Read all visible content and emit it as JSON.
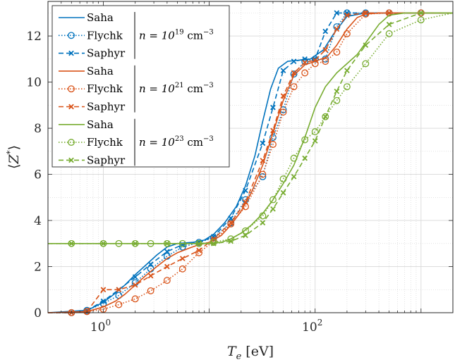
{
  "chart_data": {
    "type": "line",
    "xlabel_var": "T",
    "xlabel_sub": "e",
    "xlabel_unit": "[eV]",
    "ylabel_var": "⟨Z",
    "ylabel_sup": "*",
    "ylabel_close": "⟩",
    "xscale": "log",
    "xlim": [
      0.3,
      2000
    ],
    "ylim": [
      0,
      13.5
    ],
    "x_ticks": [
      {
        "value": 1,
        "base": "10",
        "exp": "0"
      },
      {
        "value": 100,
        "base": "10",
        "exp": "2"
      }
    ],
    "y_ticks": [
      0,
      2,
      4,
      6,
      8,
      10,
      12
    ],
    "grid": true,
    "legend_position": "top-left",
    "colors": {
      "n19": "#0072BD",
      "n21": "#D95319",
      "n23": "#77AC30"
    },
    "groups": [
      {
        "density_prefix": "n = 10",
        "density_exp": "19",
        "density_unit": "cm",
        "density_unit_exp": "−3",
        "color": "#0072BD",
        "series": [
          {
            "name": "Saha",
            "style": "solid",
            "marker": "none",
            "x": [
              0.3,
              0.7,
              1.0,
              1.3,
              1.6,
              2.0,
              2.5,
              3.2,
              4.0,
              5.0,
              7.0,
              9.0,
              11,
              14,
              18,
              22,
              27,
              32,
              38,
              45,
              55,
              70,
              90,
              120,
              150,
              200,
              300,
              500,
              1000,
              2000
            ],
            "y": [
              0,
              0.1,
              0.45,
              0.85,
              1.2,
              1.65,
              2.05,
              2.5,
              2.85,
              3.0,
              3.05,
              3.15,
              3.4,
              3.9,
              4.6,
              5.5,
              6.8,
              8.3,
              9.7,
              10.6,
              10.9,
              10.95,
              11.0,
              11.4,
              12.1,
              12.85,
              13.0,
              13.0,
              13.0,
              13.0
            ]
          },
          {
            "name": "Flychk",
            "style": "dotted",
            "marker": "circle",
            "x": [
              0.3,
              0.5,
              0.7,
              1.0,
              1.4,
              2.0,
              2.8,
              4.0,
              5.6,
              8.0,
              11,
              16,
              22,
              32,
              40,
              50,
              63,
              80,
              100,
              125,
              160,
              200,
              300,
              500,
              1000,
              2000
            ],
            "y": [
              0,
              0.0,
              0.1,
              0.4,
              0.75,
              1.3,
              1.9,
              2.45,
              2.85,
              3.05,
              3.25,
              3.9,
              4.9,
              5.9,
              7.6,
              8.8,
              10.35,
              10.9,
              11.0,
              11.0,
              12.4,
              13.0,
              13.0,
              13.0,
              13.0,
              13.0
            ]
          },
          {
            "name": "Saphyr",
            "style": "dashed",
            "marker": "x",
            "x": [
              0.3,
              0.5,
              0.7,
              1.0,
              1.4,
              2.0,
              2.8,
              4.0,
              5.6,
              8.0,
              11,
              16,
              22,
              32,
              40,
              50,
              63,
              80,
              100,
              125,
              160,
              200,
              300,
              500,
              1000,
              2000
            ],
            "y": [
              0,
              0.0,
              0.1,
              0.5,
              1.0,
              1.55,
              2.1,
              2.65,
              2.95,
              3.05,
              3.3,
              4.1,
              5.3,
              7.35,
              8.9,
              10.5,
              10.9,
              11.0,
              11.0,
              12.2,
              13.0,
              13.0,
              13.0,
              13.0,
              13.0,
              13.0
            ]
          }
        ]
      },
      {
        "density_prefix": "n = 10",
        "density_exp": "21",
        "density_unit": "cm",
        "density_unit_exp": "−3",
        "color": "#D95319",
        "series": [
          {
            "name": "Saha",
            "style": "solid",
            "marker": "none",
            "x": [
              0.3,
              0.7,
              1.0,
              1.3,
              1.6,
              2.0,
              2.5,
              3.2,
              4.0,
              5.0,
              6.5,
              8.0,
              10,
              13,
              16,
              20,
              25,
              32,
              40,
              50,
              63,
              80,
              100,
              130,
              160,
              200,
              250,
              300,
              400,
              600,
              1000,
              2000
            ],
            "y": [
              0,
              0.05,
              0.25,
              0.5,
              0.8,
              1.2,
              1.6,
              2.0,
              2.35,
              2.6,
              2.8,
              2.95,
              3.05,
              3.35,
              3.8,
              4.4,
              5.2,
              6.4,
              7.8,
              9.2,
              10.3,
              10.75,
              10.9,
              11.1,
              11.6,
              12.3,
              12.8,
              12.95,
              13.0,
              13.0,
              13.0,
              13.0
            ]
          },
          {
            "name": "Flychk",
            "style": "dotted",
            "marker": "circle",
            "x": [
              0.3,
              0.5,
              0.7,
              1.0,
              1.4,
              2.0,
              2.8,
              4.0,
              5.6,
              8.0,
              11,
              16,
              22,
              32,
              40,
              50,
              63,
              80,
              100,
              125,
              160,
              200,
              300,
              500,
              1000,
              2000
            ],
            "y": [
              0,
              0.0,
              0.05,
              0.15,
              0.35,
              0.6,
              0.95,
              1.4,
              1.9,
              2.6,
              3.1,
              3.85,
              4.6,
              6.0,
              7.3,
              8.7,
              9.8,
              10.4,
              10.8,
              10.9,
              11.3,
              12.1,
              12.95,
              13.0,
              13.0,
              13.0
            ]
          },
          {
            "name": "Saphyr",
            "style": "dashed",
            "marker": "x",
            "x": [
              0.3,
              0.5,
              0.7,
              1.0,
              1.4,
              2.0,
              2.8,
              4.0,
              5.6,
              8.0,
              11,
              16,
              22,
              32,
              40,
              50,
              63,
              80,
              100,
              125,
              160,
              200,
              300,
              500,
              1000,
              2000
            ],
            "y": [
              0,
              0.0,
              0.05,
              1.0,
              1.0,
              1.2,
              1.6,
              2.0,
              2.35,
              2.7,
              3.2,
              3.9,
              4.8,
              6.6,
              7.9,
              9.4,
              10.4,
              10.85,
              10.95,
              11.4,
              12.3,
              12.9,
              13.0,
              13.0,
              13.0,
              13.0
            ]
          }
        ]
      },
      {
        "density_prefix": "n = 10",
        "density_exp": "23",
        "density_unit": "cm",
        "density_unit_exp": "−3",
        "color": "#77AC30",
        "series": [
          {
            "name": "Saha",
            "style": "solid",
            "marker": "none",
            "x": [
              0.3,
              0.5,
              1.0,
              2.0,
              4.0,
              8.0,
              10,
              13,
              16,
              20,
              25,
              32,
              40,
              50,
              63,
              80,
              100,
              125,
              160,
              200,
              250,
              300,
              400,
              500,
              700,
              1000,
              2000
            ],
            "y": [
              3.0,
              3.0,
              3.0,
              3.0,
              3.0,
              3.0,
              3.0,
              3.05,
              3.2,
              3.45,
              3.8,
              4.3,
              4.9,
              5.6,
              6.4,
              7.6,
              8.9,
              9.8,
              10.4,
              10.8,
              11.2,
              11.7,
              12.5,
              12.9,
              13.0,
              13.0,
              13.0
            ]
          },
          {
            "name": "Flychk",
            "style": "dotted",
            "marker": "circle",
            "x": [
              0.3,
              0.5,
              1.0,
              1.4,
              2.0,
              2.8,
              4.0,
              5.6,
              8.0,
              11,
              16,
              22,
              32,
              40,
              50,
              63,
              80,
              100,
              125,
              160,
              200,
              300,
              500,
              1000,
              2000
            ],
            "y": [
              3.0,
              3.0,
              3.0,
              3.0,
              3.0,
              3.0,
              3.0,
              3.0,
              3.0,
              3.05,
              3.2,
              3.55,
              4.2,
              4.9,
              5.8,
              6.7,
              7.5,
              7.85,
              8.5,
              9.2,
              9.8,
              10.8,
              12.1,
              12.7,
              13.0
            ]
          },
          {
            "name": "Saphyr",
            "style": "dashed",
            "marker": "x",
            "x": [
              0.3,
              0.5,
              1.0,
              2.0,
              4.0,
              8.0,
              11,
              16,
              22,
              32,
              40,
              50,
              63,
              80,
              100,
              125,
              160,
              200,
              300,
              500,
              1000,
              2000
            ],
            "y": [
              3.0,
              3.0,
              3.0,
              3.0,
              3.0,
              3.0,
              3.0,
              3.1,
              3.35,
              3.9,
              4.5,
              5.2,
              5.9,
              6.7,
              7.45,
              8.5,
              9.6,
              10.5,
              11.6,
              12.5,
              13.0,
              13.0
            ]
          }
        ]
      }
    ]
  }
}
